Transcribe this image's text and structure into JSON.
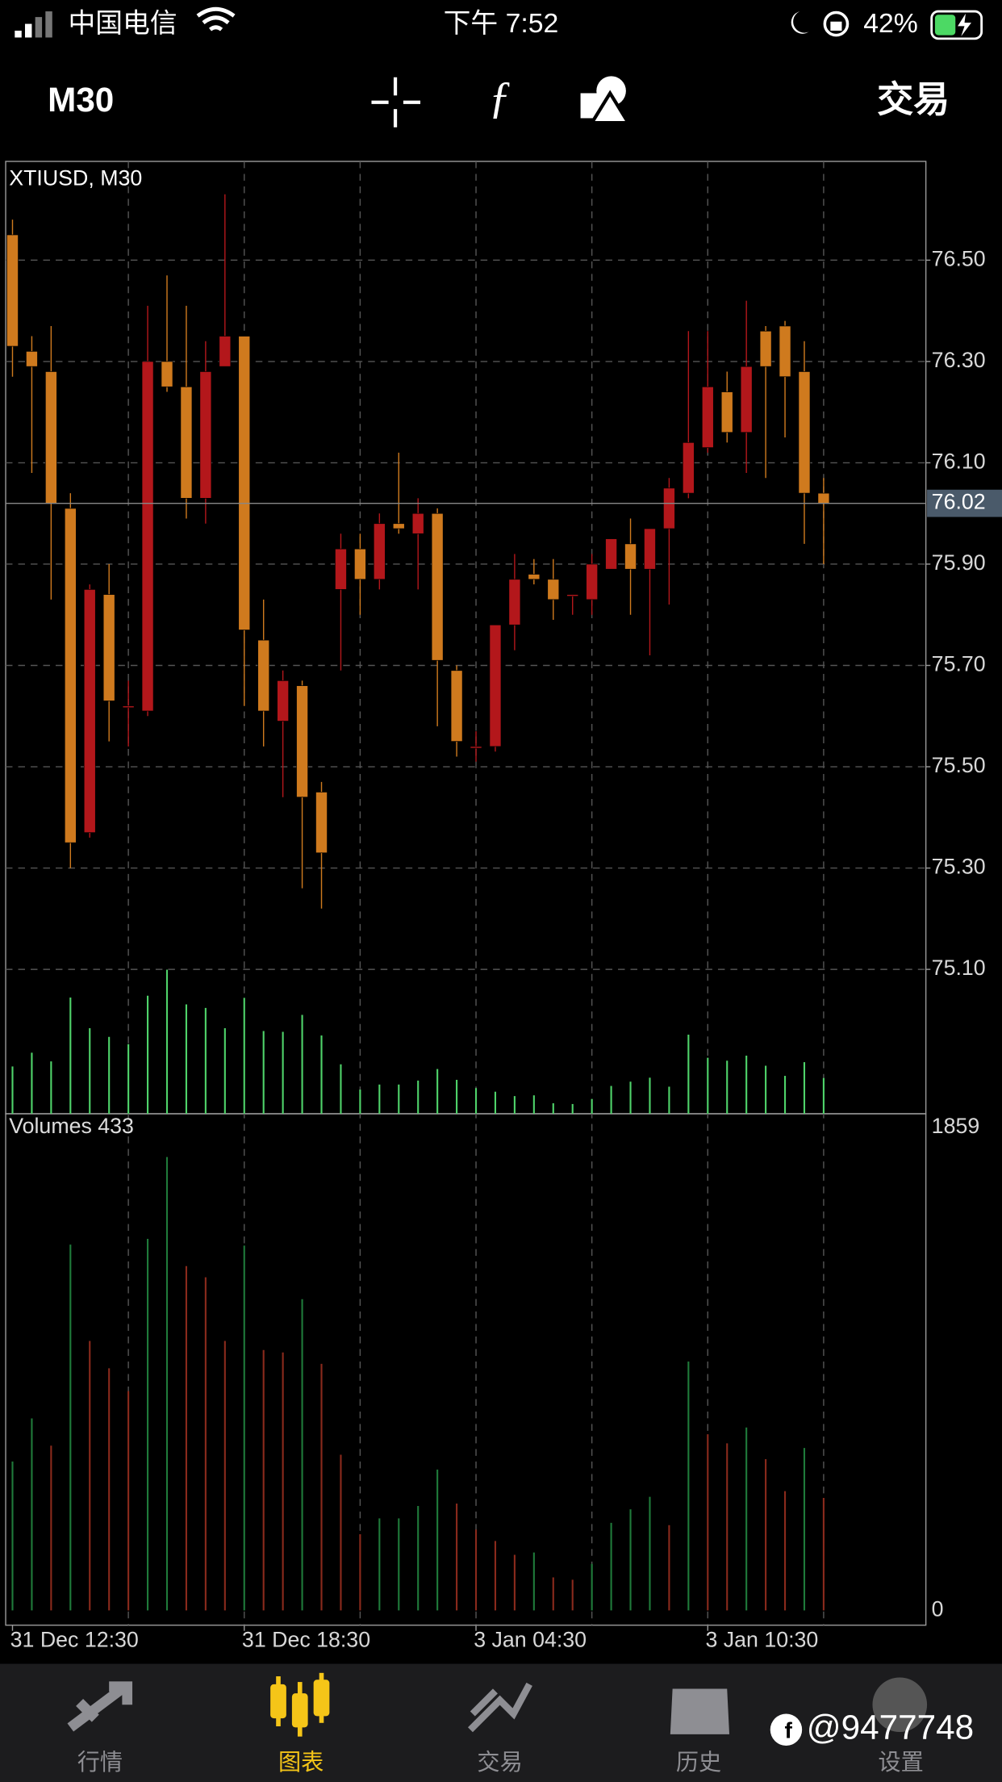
{
  "status_bar": {
    "carrier": "中国电信",
    "time": "下午 7:52",
    "battery": "42%"
  },
  "toolbar": {
    "timeframe": "M30",
    "trade": "交易"
  },
  "chart_data": [
    {
      "type": "candlestick",
      "title": "XTIUSD, M30",
      "categories": [
        "31 Dec 12:30",
        null,
        null,
        null,
        null,
        null,
        null,
        null,
        null,
        null,
        null,
        null,
        "31 Dec 18:30",
        null,
        null,
        null,
        null,
        null,
        null,
        null,
        null,
        null,
        null,
        null,
        "3 Jan 04:30",
        null,
        null,
        null,
        null,
        null,
        null,
        null,
        null,
        null,
        null,
        null,
        "3 Jan 10:30",
        null,
        null,
        null,
        null,
        null,
        null
      ],
      "open": [
        76.55,
        76.32,
        76.28,
        76.01,
        75.37,
        75.84,
        75.62,
        75.61,
        76.3,
        76.25,
        76.03,
        76.29,
        76.35,
        75.75,
        75.59,
        75.66,
        75.45,
        75.85,
        75.93,
        75.87,
        75.98,
        75.96,
        76.0,
        75.69,
        75.54,
        75.54,
        75.78,
        75.88,
        75.87,
        75.84,
        75.83,
        75.89,
        75.94,
        75.89,
        75.97,
        76.04,
        76.13,
        76.24,
        76.16,
        76.36,
        76.37,
        76.28,
        76.04
      ],
      "high": [
        76.58,
        76.35,
        76.37,
        76.04,
        75.86,
        75.9,
        75.67,
        76.41,
        76.47,
        76.41,
        76.34,
        76.63,
        76.35,
        75.83,
        75.69,
        75.67,
        75.47,
        75.96,
        75.96,
        76.0,
        76.12,
        76.03,
        76.01,
        75.7,
        75.57,
        75.78,
        75.92,
        75.91,
        75.91,
        75.84,
        75.92,
        75.95,
        75.99,
        75.97,
        76.07,
        76.36,
        76.36,
        76.28,
        76.42,
        76.37,
        76.38,
        76.34,
        76.07
      ],
      "low": [
        76.27,
        76.08,
        75.83,
        75.3,
        75.36,
        75.55,
        75.54,
        75.6,
        76.24,
        75.99,
        75.98,
        76.29,
        75.62,
        75.54,
        75.44,
        75.26,
        75.22,
        75.69,
        75.8,
        75.85,
        75.96,
        75.85,
        75.58,
        75.52,
        75.51,
        75.53,
        75.73,
        75.86,
        75.79,
        75.8,
        75.8,
        75.89,
        75.8,
        75.72,
        75.82,
        76.03,
        76.12,
        76.14,
        76.08,
        76.07,
        76.15,
        75.94,
        75.9
      ],
      "close": [
        76.33,
        76.29,
        76.02,
        75.35,
        75.85,
        75.63,
        75.62,
        76.3,
        76.25,
        76.03,
        76.28,
        76.35,
        75.77,
        75.61,
        75.67,
        75.44,
        75.33,
        75.93,
        75.87,
        75.98,
        75.97,
        76.0,
        75.71,
        75.55,
        75.54,
        75.78,
        75.87,
        75.87,
        75.83,
        75.84,
        75.9,
        75.95,
        75.89,
        75.97,
        76.05,
        76.14,
        76.25,
        76.16,
        76.29,
        76.29,
        76.27,
        76.04,
        76.02
      ],
      "up_color": "#b3171b",
      "down_color": "#cf7a1e",
      "ylim": [
        74.815,
        76.695
      ],
      "yticks": [
        {
          "value": 76.5,
          "label": "76.50"
        },
        {
          "value": 76.3,
          "label": "76.30"
        },
        {
          "value": 76.1,
          "label": "76.10"
        },
        {
          "value": 75.9,
          "label": "75.90"
        },
        {
          "value": 75.7,
          "label": "75.70"
        },
        {
          "value": 75.5,
          "label": "75.50"
        },
        {
          "value": 75.3,
          "label": "75.30"
        },
        {
          "value": 75.1,
          "label": "75.10"
        }
      ],
      "current_price": 76.02,
      "grid": true
    },
    {
      "type": "volume",
      "title": "Volumes 433",
      "values": [
        573,
        739,
        634,
        1408,
        1037,
        932,
        844,
        1430,
        1745,
        1325,
        1282,
        1037,
        1404,
        1002,
        993,
        1198,
        949,
        599,
        293,
        354,
        354,
        402,
        542,
        411,
        311,
        267,
        214,
        223,
        127,
        118,
        179,
        337,
        389,
        437,
        328,
        958,
        678,
        643,
        704,
        582,
        459,
        625,
        433
      ],
      "up_color": "#1f7a3a",
      "down_color": "#8a2a1c",
      "overlay_color": "#4fd36a",
      "ylim": [
        0,
        1859
      ],
      "yticks": [
        0,
        1859
      ]
    }
  ],
  "tabs": [
    "行情",
    "图表",
    "交易",
    "历史",
    "设置"
  ],
  "watermark": "@9477748"
}
